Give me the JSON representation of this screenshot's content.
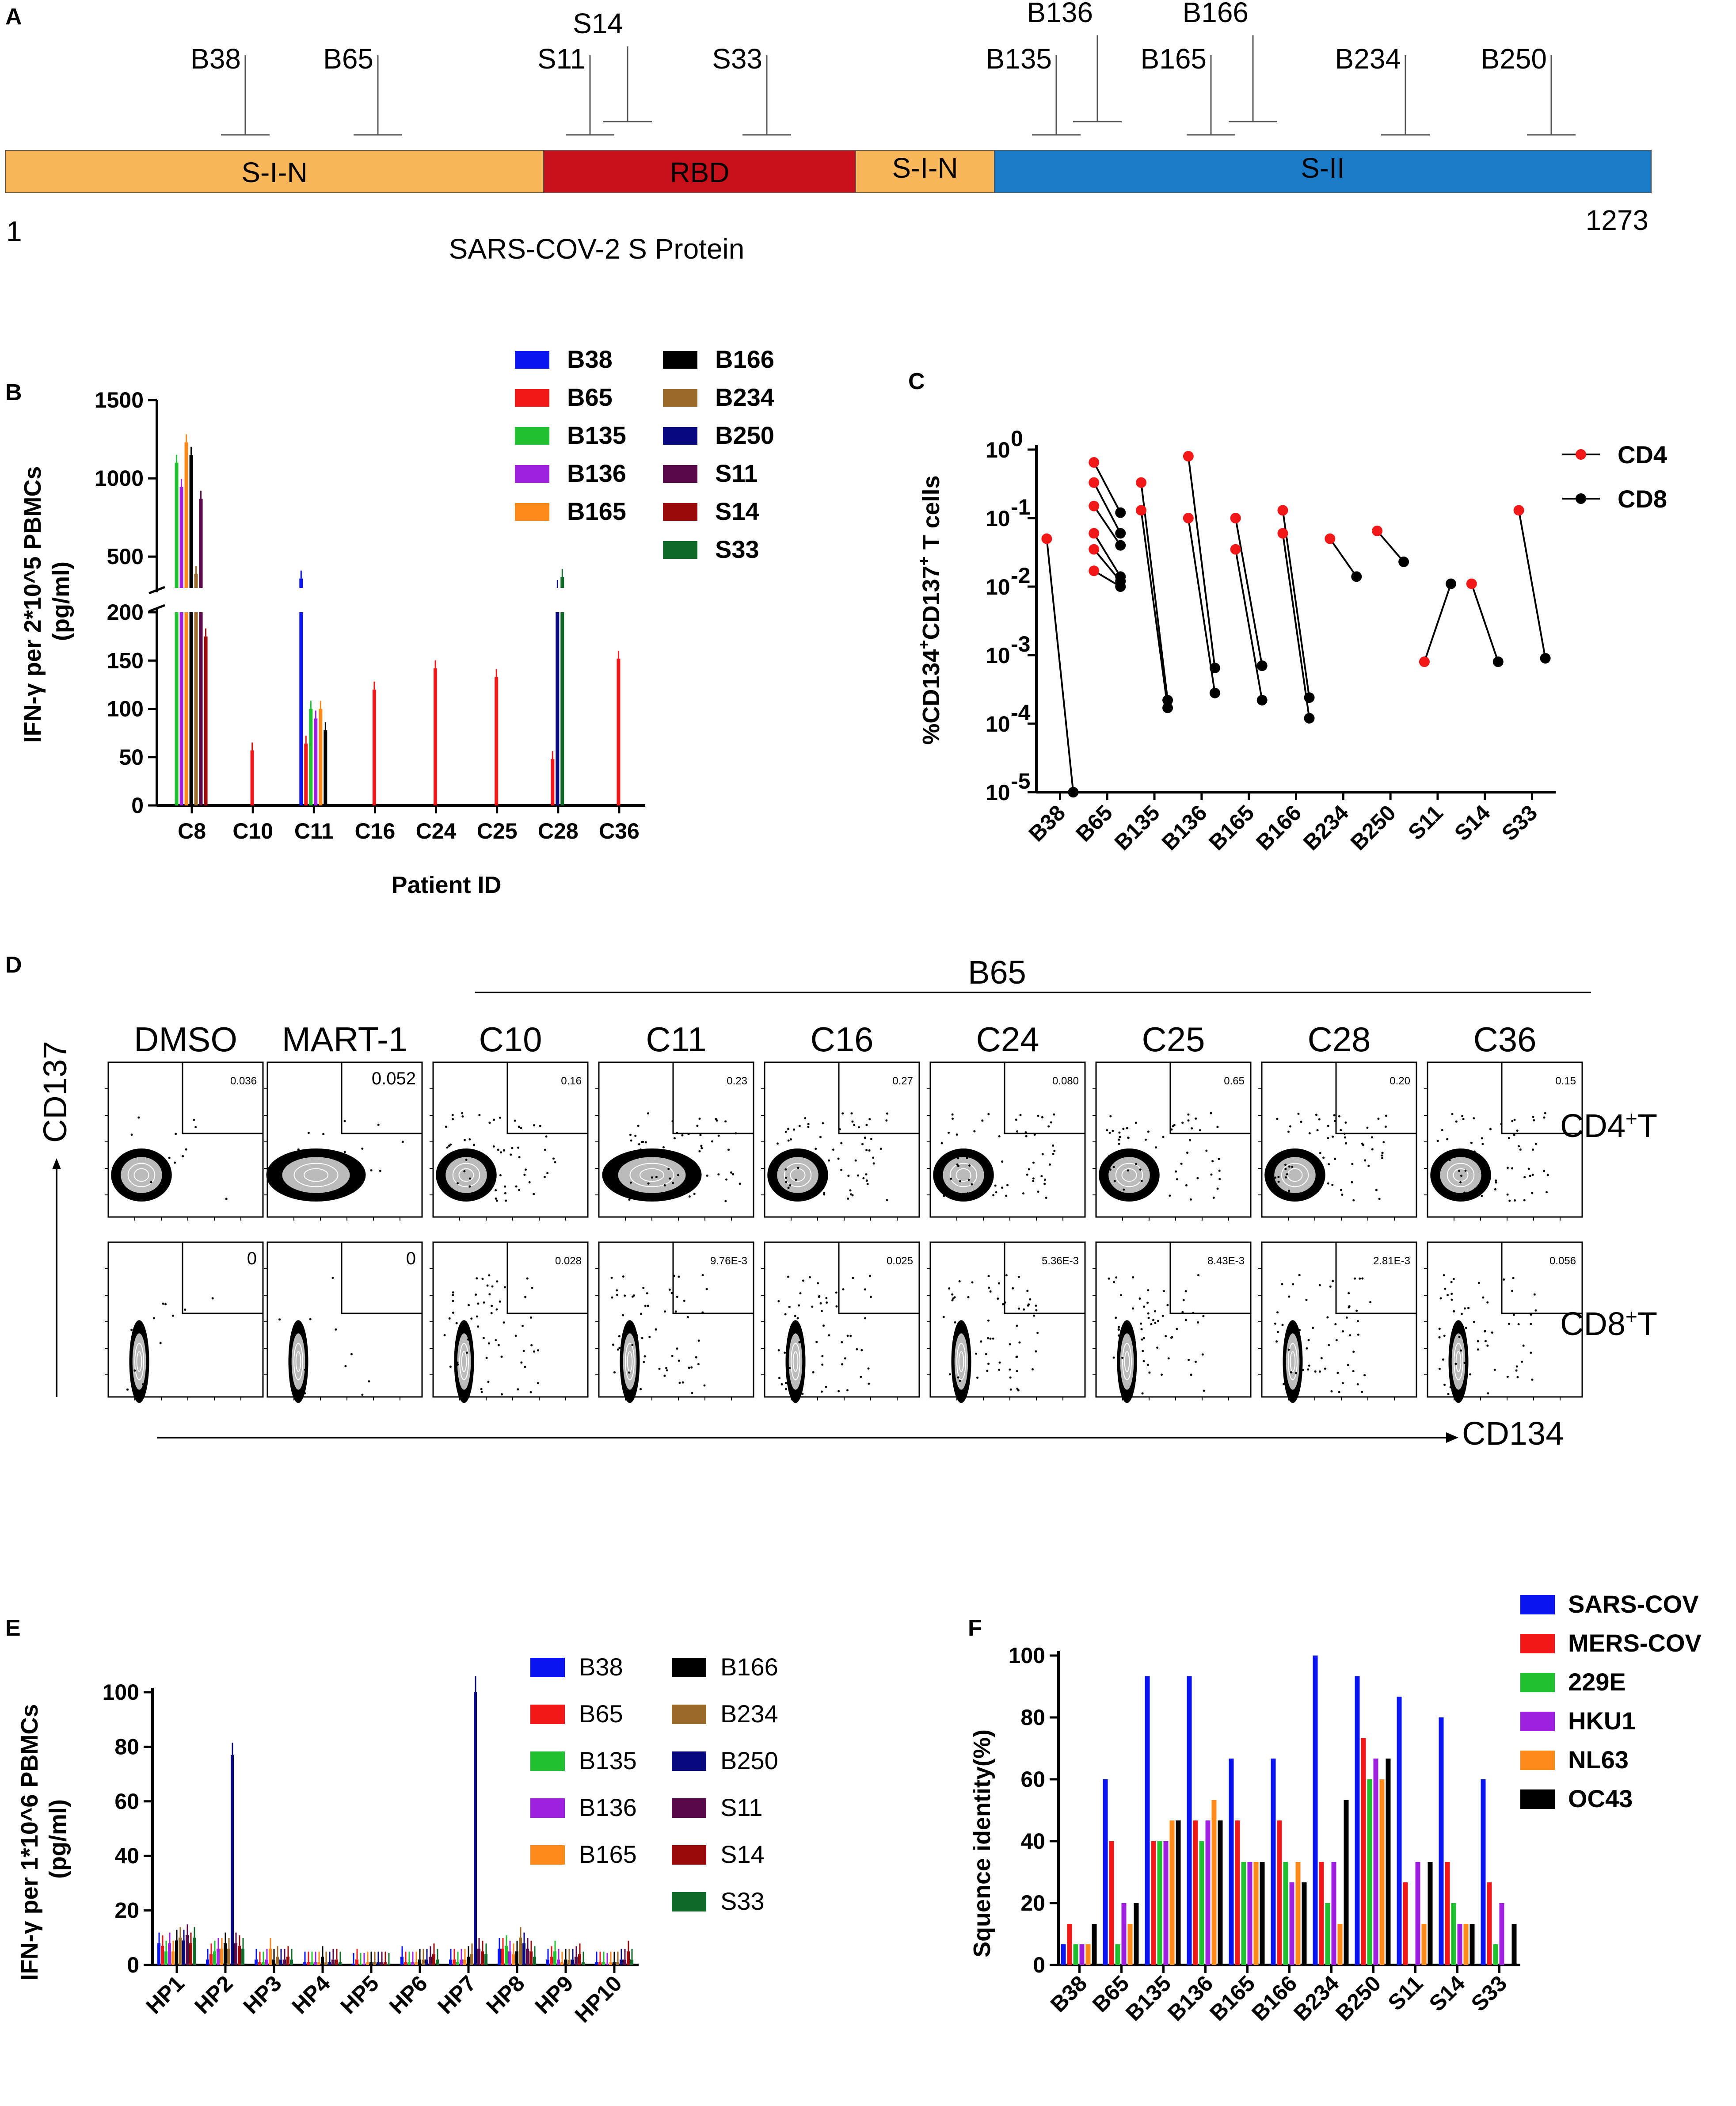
{
  "panel_letters": {
    "a": "A",
    "b": "B",
    "c": "C",
    "d": "D",
    "e": "E",
    "f": "F"
  },
  "panelA": {
    "caption": "SARS-COV-2 S Protein",
    "start_label": "1",
    "end_label": "1273",
    "segments": [
      {
        "label": "S-I-N",
        "color": "#F9B65A"
      },
      {
        "label": "RBD",
        "color": "#C8101A"
      },
      {
        "label": "S-I-N",
        "color": "#F9B65A"
      },
      {
        "label": "S-II",
        "color": "#1A7CC8"
      }
    ],
    "peptides": [
      "B38",
      "B65",
      "S11",
      "S14",
      "S33",
      "B135",
      "B136",
      "B165",
      "B166",
      "B234",
      "B250"
    ]
  },
  "panelB": {
    "ylabel": "IFN-γ per 2*10^5 PBMCs (pg/ml)",
    "xlabel": "Patient ID",
    "upper_ticks": [
      "500",
      "1000",
      "1500"
    ],
    "lower_ticks": [
      "0",
      "50",
      "100",
      "150",
      "200"
    ],
    "legend": [
      {
        "label": "B38",
        "color": "#0A14F0"
      },
      {
        "label": "B65",
        "color": "#F01818"
      },
      {
        "label": "B135",
        "color": "#20C030"
      },
      {
        "label": "B136",
        "color": "#A020E0"
      },
      {
        "label": "B165",
        "color": "#FF8A1A"
      },
      {
        "label": "B166",
        "color": "#000000"
      },
      {
        "label": "B234",
        "color": "#9A6A2A"
      },
      {
        "label": "B250",
        "color": "#0A0A80"
      },
      {
        "label": "S11",
        "color": "#5A0A4A"
      },
      {
        "label": "S14",
        "color": "#9A0A0A"
      },
      {
        "label": "S33",
        "color": "#0F6A2A"
      }
    ]
  },
  "panelC": {
    "ylabel": "%CD134+CD137+ T cells",
    "y_ticks": [
      "10",
      "10",
      "10",
      "10",
      "10",
      "10"
    ],
    "y_exps": [
      "0",
      "-1",
      "-2",
      "-3",
      "-4",
      "-5"
    ],
    "legend": [
      {
        "label": "CD4",
        "color": "#F01818"
      },
      {
        "label": "CD8",
        "color": "#000000"
      }
    ]
  },
  "panelD": {
    "group_label": "B65",
    "conditions": [
      "DMSO",
      "MART-1",
      "C10",
      "C11",
      "C16",
      "C24",
      "C25",
      "C28",
      "C36"
    ],
    "row_labels": [
      "CD4+T",
      "CD8+T"
    ],
    "y_axis": "CD137",
    "x_axis": "CD134",
    "cd4_values": [
      "0.036",
      "0.052",
      "0.16",
      "0.23",
      "0.27",
      "0.080",
      "0.65",
      "0.20",
      "0.15"
    ],
    "cd8_values": [
      "0",
      "0",
      "0.028",
      "9.76E-3",
      "0.025",
      "5.36E-3",
      "8.43E-3",
      "2.81E-3",
      "0.056"
    ]
  },
  "panelE": {
    "ylabel": "IFN-γ per 1*10^6 PBMCs (pg/ml)",
    "ticks": [
      "0",
      "20",
      "40",
      "60",
      "80",
      "100"
    ]
  },
  "panelF": {
    "ylabel": "Squence identity(%)",
    "ticks": [
      "0",
      "20",
      "40",
      "60",
      "80",
      "100"
    ]
  },
  "chart_data": [
    {
      "id": "B",
      "type": "bar",
      "categories": [
        "C8",
        "C10",
        "C11",
        "C16",
        "C24",
        "C25",
        "C28",
        "C36"
      ],
      "axis_break": [
        200,
        300
      ],
      "ylim": [
        0,
        1500
      ],
      "series": [
        {
          "name": "B38",
          "values": [
            null,
            null,
            360,
            null,
            null,
            null,
            null,
            null
          ]
        },
        {
          "name": "B65",
          "values": [
            null,
            57,
            64,
            120,
            142,
            133,
            48,
            152
          ]
        },
        {
          "name": "B135",
          "values": [
            1100,
            null,
            100,
            null,
            null,
            null,
            null,
            null
          ]
        },
        {
          "name": "B136",
          "values": [
            945,
            null,
            90,
            null,
            null,
            null,
            null,
            null
          ]
        },
        {
          "name": "B165",
          "values": [
            1230,
            null,
            100,
            null,
            null,
            null,
            null,
            null
          ]
        },
        {
          "name": "B166",
          "values": [
            1150,
            null,
            78,
            null,
            null,
            null,
            null,
            null
          ]
        },
        {
          "name": "B234",
          "values": [
            390,
            null,
            null,
            null,
            null,
            null,
            null,
            null
          ]
        },
        {
          "name": "B250",
          "values": [
            null,
            null,
            null,
            null,
            null,
            null,
            260,
            null
          ]
        },
        {
          "name": "S11",
          "values": [
            870,
            null,
            null,
            null,
            null,
            null,
            null,
            null
          ]
        },
        {
          "name": "S14",
          "values": [
            175,
            null,
            null,
            null,
            null,
            null,
            null,
            null
          ]
        },
        {
          "name": "S33",
          "values": [
            null,
            null,
            null,
            null,
            null,
            null,
            370,
            null
          ]
        }
      ]
    },
    {
      "id": "C",
      "type": "scatter",
      "scale": "log",
      "categories": [
        "B38",
        "B65",
        "B135",
        "B136",
        "B165",
        "B166",
        "B234",
        "B250",
        "S11",
        "S14",
        "S33"
      ],
      "ylim_exp": [
        -5,
        0
      ],
      "pairs": [
        {
          "cat": "B38",
          "cd4": [
            0.05
          ],
          "cd8": [
            1e-05
          ]
        },
        {
          "cat": "B65",
          "cd4": [
            0.65,
            0.33,
            0.15,
            0.06,
            0.035,
            0.017
          ],
          "cd8": [
            0.12,
            0.06,
            0.04,
            0.014,
            0.012,
            0.01
          ]
        },
        {
          "cat": "B135",
          "cd4": [
            0.33,
            0.13
          ],
          "cd8": [
            0.00022,
            0.00017
          ]
        },
        {
          "cat": "B136",
          "cd4": [
            0.8,
            0.1
          ],
          "cd8": [
            0.00065,
            0.00028
          ]
        },
        {
          "cat": "B165",
          "cd4": [
            0.1,
            0.035
          ],
          "cd8": [
            0.0007,
            0.00022
          ]
        },
        {
          "cat": "B166",
          "cd4": [
            0.13,
            0.06
          ],
          "cd8": [
            0.00024,
            0.00012
          ]
        },
        {
          "cat": "B234",
          "cd4": [
            0.05
          ],
          "cd8": [
            0.014
          ]
        },
        {
          "cat": "B250",
          "cd4": [
            0.065
          ],
          "cd8": [
            0.023
          ]
        },
        {
          "cat": "S11",
          "cd4": [
            0.0008
          ],
          "cd8": [
            0.011
          ]
        },
        {
          "cat": "S14",
          "cd4": [
            0.011
          ],
          "cd8": [
            0.0008
          ]
        },
        {
          "cat": "S33",
          "cd4": [
            0.13
          ],
          "cd8": [
            0.0009
          ]
        }
      ]
    },
    {
      "id": "E",
      "type": "bar",
      "categories": [
        "HP1",
        "HP2",
        "HP3",
        "HP4",
        "HP5",
        "HP6",
        "HP7",
        "HP8",
        "HP9",
        "HP10"
      ],
      "ylim": [
        0,
        100
      ],
      "series": [
        {
          "name": "B38",
          "values": [
            8,
            2,
            2,
            1,
            0.5,
            3,
            2,
            6,
            2,
            1
          ]
        },
        {
          "name": "B65",
          "values": [
            7,
            4,
            1,
            1,
            2,
            1,
            2,
            6,
            3,
            1
          ]
        },
        {
          "name": "B135",
          "values": [
            5,
            5,
            1,
            1,
            0.5,
            1,
            1,
            7,
            5,
            1
          ]
        },
        {
          "name": "B136",
          "values": [
            8,
            6,
            2,
            1,
            0.5,
            1,
            2,
            5,
            2,
            0.5
          ]
        },
        {
          "name": "B165",
          "values": [
            5,
            6,
            6,
            1,
            1,
            1,
            2,
            4,
            1,
            1
          ]
        },
        {
          "name": "B166",
          "values": [
            9,
            8,
            2,
            3,
            1,
            2,
            3,
            5,
            2,
            1
          ]
        },
        {
          "name": "B234",
          "values": [
            10,
            6,
            3,
            1,
            1,
            2,
            4,
            10,
            2,
            1
          ]
        },
        {
          "name": "B250",
          "values": [
            9,
            77,
            2,
            1,
            1,
            2,
            100,
            8,
            2,
            2
          ]
        },
        {
          "name": "S11",
          "values": [
            11,
            8,
            2,
            2,
            1,
            3,
            6,
            6,
            3,
            2
          ]
        },
        {
          "name": "S14",
          "values": [
            8,
            7,
            3,
            2,
            1,
            4,
            5,
            5,
            4,
            5
          ]
        },
        {
          "name": "S33",
          "values": [
            10,
            6,
            2,
            1,
            0.5,
            2,
            4,
            3,
            1,
            2
          ]
        }
      ]
    },
    {
      "id": "F",
      "type": "bar",
      "categories": [
        "B38",
        "B65",
        "B135",
        "B136",
        "B165",
        "B166",
        "B234",
        "B250",
        "S11",
        "S14",
        "S33"
      ],
      "ylim": [
        0,
        100
      ],
      "series": [
        {
          "name": "SARS-COV",
          "color": "#0A14F0",
          "values": [
            6.7,
            60,
            93.3,
            93.3,
            66.7,
            66.7,
            100,
            93.3,
            86.7,
            80,
            60
          ]
        },
        {
          "name": "MERS-COV",
          "color": "#F01818",
          "values": [
            13.3,
            40,
            40,
            46.7,
            46.7,
            46.7,
            33.3,
            73.3,
            26.7,
            33.3,
            26.7
          ]
        },
        {
          "name": "229E",
          "color": "#20C030",
          "values": [
            6.7,
            6.7,
            40,
            40,
            33.3,
            33.3,
            20,
            60,
            0,
            20,
            6.7
          ]
        },
        {
          "name": "HKU1",
          "color": "#A020E0",
          "values": [
            6.7,
            20,
            40,
            46.7,
            33.3,
            26.7,
            33.3,
            66.7,
            33.3,
            13.3,
            20
          ]
        },
        {
          "name": "NL63",
          "color": "#FF8A1A",
          "values": [
            6.7,
            13.3,
            46.7,
            53.3,
            33.3,
            33.3,
            13.3,
            60,
            13.3,
            13.3,
            0
          ]
        },
        {
          "name": "OC43",
          "color": "#000000",
          "values": [
            13.3,
            20,
            46.7,
            46.7,
            33.3,
            26.7,
            53.3,
            66.7,
            33.3,
            13.3,
            13.3
          ]
        }
      ]
    }
  ]
}
